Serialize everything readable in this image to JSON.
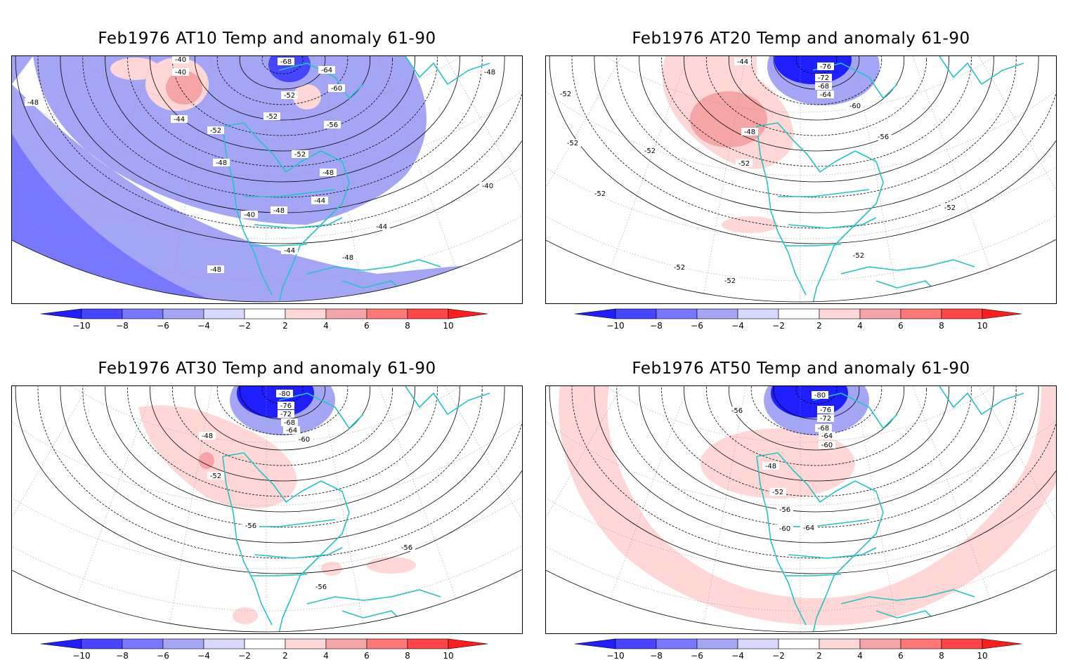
{
  "colors": {
    "blue_levels": [
      "#1e1eff",
      "#4646ff",
      "#7878ff",
      "#a5a5f5",
      "#d7d7ff"
    ],
    "red_levels": [
      "#ffd7d7",
      "#f5a5a5",
      "#ff7878",
      "#ff4646",
      "#ff1e1e"
    ],
    "coastline": "#22c4c4",
    "contour": "#000000"
  },
  "colorbar": {
    "tick_labels": [
      "−10",
      "−8",
      "−6",
      "−4",
      "−2",
      "2",
      "4",
      "6",
      "8",
      "10"
    ]
  },
  "panels": [
    {
      "title": "Feb1976 AT10 Temp and anomaly 61-90",
      "contour_labels": [
        "-40",
        "-40",
        "-48",
        "-68",
        "-64",
        "-60",
        "-52",
        "-52",
        "-44",
        "-52",
        "-56",
        "-52",
        "-48",
        "-48",
        "-48",
        "-40",
        "-44",
        "-44",
        "-44",
        "-48",
        "-48",
        "-40",
        "-48"
      ],
      "anomaly_fields": [
        {
          "level": "-4",
          "desc": "broad cool band western/southern rim"
        },
        {
          "level": "-6",
          "desc": "outer rim southwest"
        },
        {
          "level": "4",
          "desc": "warm anomaly over Alaska"
        },
        {
          "level": "-10",
          "desc": "cold core near pole"
        }
      ]
    },
    {
      "title": "Feb1976 AT20 Temp and anomaly 61-90",
      "contour_labels": [
        "-44",
        "-76",
        "-72",
        "-68",
        "-64",
        "-60",
        "-56",
        "-52",
        "-48",
        "-52",
        "-52",
        "-52",
        "-52",
        "-52",
        "-52",
        "-52",
        "-52"
      ],
      "anomaly_fields": [
        {
          "level": "2",
          "desc": "warm band over Alaska and western Canada"
        },
        {
          "level": "4",
          "desc": "warm core over Gulf of Alaska"
        },
        {
          "level": "-10",
          "desc": "deep cold core over Canadian Arctic"
        },
        {
          "level": "2",
          "desc": "small warm patch in subtropical Pacific"
        }
      ]
    },
    {
      "title": "Feb1976 AT30 Temp and anomaly 61-90",
      "contour_labels": [
        "-80",
        "-76",
        "-72",
        "-68",
        "-64",
        "-60",
        "-48",
        "-52",
        "-56",
        "-56",
        "-56"
      ],
      "anomaly_fields": [
        {
          "level": "2",
          "desc": "warm region western Canada/Alaska"
        },
        {
          "level": "4",
          "desc": "small warm core near coast"
        },
        {
          "level": "-10",
          "desc": "deep cold core over Canadian Arctic"
        },
        {
          "level": "2",
          "desc": "warm patches Caribbean and tropical Pacific"
        }
      ]
    },
    {
      "title": "Feb1976 AT50 Temp and anomaly 61-90",
      "contour_labels": [
        "-80",
        "-76",
        "-72",
        "-68",
        "-64",
        "-60",
        "-56",
        "-48",
        "-52",
        "-56",
        "-60",
        "-64"
      ],
      "anomaly_fields": [
        {
          "level": "2",
          "desc": "warm ring along outer rim"
        },
        {
          "level": "2",
          "desc": "warm patch over central Canada/US"
        },
        {
          "level": "-10",
          "desc": "deep cold core over Canadian Arctic"
        }
      ]
    }
  ]
}
